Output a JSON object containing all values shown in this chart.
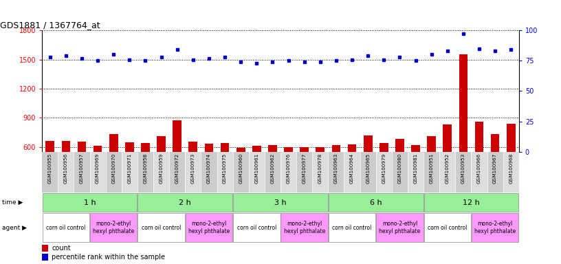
{
  "title": "GDS1881 / 1367764_at",
  "samples": [
    "GSM100955",
    "GSM100956",
    "GSM100957",
    "GSM100969",
    "GSM100970",
    "GSM100971",
    "GSM100958",
    "GSM100959",
    "GSM100972",
    "GSM100973",
    "GSM100974",
    "GSM100975",
    "GSM100960",
    "GSM100961",
    "GSM100962",
    "GSM100976",
    "GSM100977",
    "GSM100978",
    "GSM100963",
    "GSM100964",
    "GSM100965",
    "GSM100979",
    "GSM100980",
    "GSM100981",
    "GSM100951",
    "GSM100952",
    "GSM100953",
    "GSM100966",
    "GSM100967",
    "GSM100968"
  ],
  "counts": [
    660,
    665,
    658,
    610,
    730,
    645,
    640,
    710,
    875,
    658,
    630,
    642,
    593,
    615,
    620,
    600,
    595,
    600,
    620,
    625,
    720,
    638,
    680,
    618,
    712,
    835,
    1555,
    862,
    730,
    842
  ],
  "percentiles": [
    78,
    79,
    77,
    75,
    80,
    76,
    75,
    78,
    84,
    76,
    77,
    78,
    74,
    73,
    74,
    75,
    74,
    74,
    75,
    76,
    79,
    76,
    78,
    75,
    80,
    83,
    97,
    85,
    83,
    84
  ],
  "time_groups": [
    {
      "label": "1 h",
      "start": 0,
      "end": 6
    },
    {
      "label": "2 h",
      "start": 6,
      "end": 12
    },
    {
      "label": "3 h",
      "start": 12,
      "end": 18
    },
    {
      "label": "6 h",
      "start": 18,
      "end": 24
    },
    {
      "label": "12 h",
      "start": 24,
      "end": 30
    }
  ],
  "agent_groups": [
    {
      "label": "corn oil control",
      "start": 0,
      "end": 3,
      "is_corn": true
    },
    {
      "label": "mono-2-ethyl\nhexyl phthalate",
      "start": 3,
      "end": 6,
      "is_corn": false
    },
    {
      "label": "corn oil control",
      "start": 6,
      "end": 9,
      "is_corn": true
    },
    {
      "label": "mono-2-ethyl\nhexyl phthalate",
      "start": 9,
      "end": 12,
      "is_corn": false
    },
    {
      "label": "corn oil control",
      "start": 12,
      "end": 15,
      "is_corn": true
    },
    {
      "label": "mono-2-ethyl\nhexyl phthalate",
      "start": 15,
      "end": 18,
      "is_corn": false
    },
    {
      "label": "corn oil control",
      "start": 18,
      "end": 21,
      "is_corn": true
    },
    {
      "label": "mono-2-ethyl\nhexyl phthalate",
      "start": 21,
      "end": 24,
      "is_corn": false
    },
    {
      "label": "corn oil control",
      "start": 24,
      "end": 27,
      "is_corn": true
    },
    {
      "label": "mono-2-ethyl\nhexyl phthalate",
      "start": 27,
      "end": 30,
      "is_corn": false
    }
  ],
  "ylim_left": [
    550,
    1800
  ],
  "yticks_left": [
    600,
    900,
    1200,
    1500,
    1800
  ],
  "ylim_right": [
    0,
    100
  ],
  "yticks_right": [
    0,
    25,
    50,
    75,
    100
  ],
  "bar_color": "#cc0000",
  "dot_color": "#0000cc",
  "background_color": "#ffffff",
  "time_row_color": "#99ee99",
  "agent_corn_color": "#ffffff",
  "agent_mono_color": "#ff99ff",
  "legend_count_color": "#cc0000",
  "legend_pct_color": "#0000cc",
  "sample_bg_even": "#cccccc",
  "sample_bg_odd": "#dddddd"
}
